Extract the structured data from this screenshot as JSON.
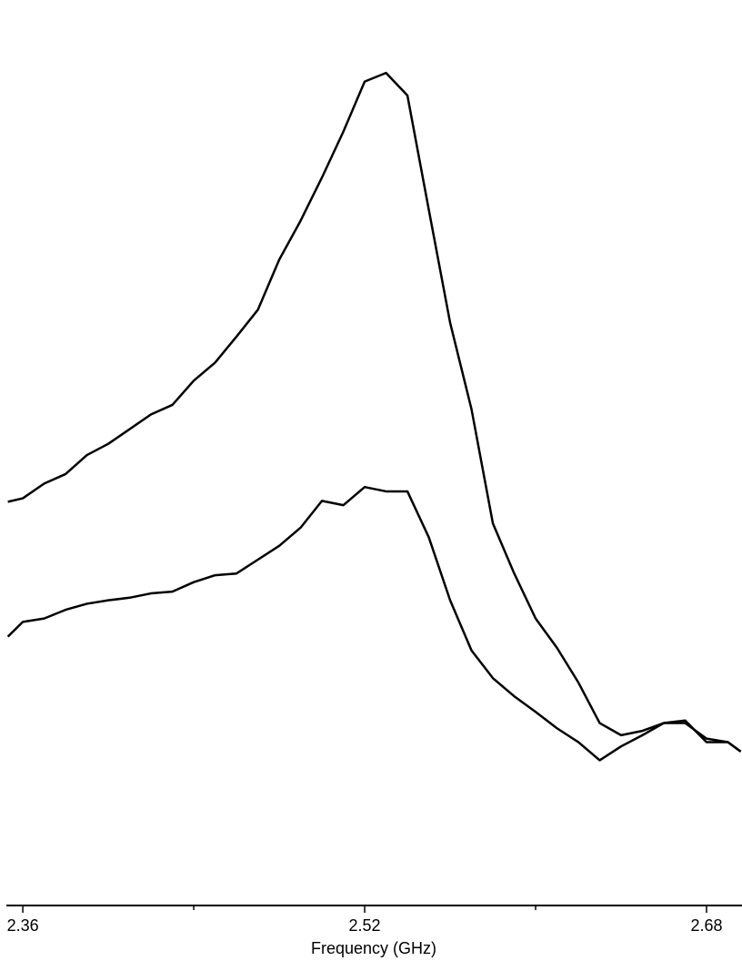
{
  "chart_data": {
    "type": "line",
    "x_label": "Frequency (GHz)",
    "x": [
      2.353,
      2.36,
      2.37,
      2.38,
      2.39,
      2.4,
      2.41,
      2.42,
      2.43,
      2.44,
      2.45,
      2.46,
      2.47,
      2.48,
      2.49,
      2.5,
      2.51,
      2.52,
      2.53,
      2.54,
      2.55,
      2.56,
      2.57,
      2.58,
      2.59,
      2.6,
      2.61,
      2.62,
      2.63,
      2.64,
      2.65,
      2.66,
      2.67,
      2.68,
      2.69,
      2.696
    ],
    "series": [
      {
        "color": "#000000",
        "values": [
          46.7,
          47.1,
          48.8,
          49.9,
          52.1,
          53.4,
          55.1,
          56.8,
          57.9,
          60.7,
          62.8,
          65.8,
          68.9,
          74.7,
          79.2,
          84.2,
          89.5,
          95.3,
          96.3,
          93.7,
          80.5,
          67.4,
          57.4,
          44.2,
          38.4,
          33.2,
          29.8,
          25.8,
          21.1,
          19.7,
          20.2,
          21.1,
          21.4,
          18.9,
          18.9,
          17.8
        ]
      },
      {
        "color": "#000000",
        "values": [
          31.1,
          32.8,
          33.2,
          34.2,
          34.9,
          35.3,
          35.6,
          36.1,
          36.3,
          37.4,
          38.2,
          38.4,
          40.0,
          41.6,
          43.7,
          46.8,
          46.3,
          48.4,
          47.9,
          47.9,
          42.6,
          35.3,
          29.5,
          26.3,
          24.2,
          22.4,
          20.5,
          18.9,
          16.8,
          18.4,
          19.7,
          21.1,
          21.1,
          19.3,
          18.9,
          17.8
        ]
      }
    ],
    "xlim": [
      2.3523,
      2.6966
    ],
    "xticks": [
      2.36,
      2.52,
      2.68
    ],
    "xminor_ticks": [
      2.44,
      2.6
    ],
    "ylim": [
      0,
      100
    ]
  }
}
